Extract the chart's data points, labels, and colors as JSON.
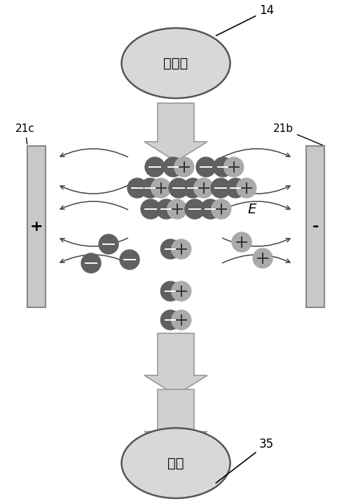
{
  "bg_color": "#ffffff",
  "fig_width": 5.02,
  "fig_height": 7.14,
  "dpi": 100,
  "ion_source_label": "离子源",
  "ion_source_label_num": "14",
  "object_label": "物体",
  "object_label_num": "35",
  "plate_left_label": "21c",
  "plate_right_label": "21b",
  "plate_left_sign": "+",
  "plate_right_sign": "-",
  "field_label": "E",
  "ellipse_fc": "#d8d8d8",
  "ellipse_ec": "#555555",
  "plate_fc": "#c8c8c8",
  "plate_ec": "#888888",
  "arrow_fc": "#d0d0d0",
  "arrow_ec": "#999999",
  "neg_circle_fc": "#606060",
  "pos_circle_fc": "#aaaaaa",
  "curve_color": "#444444"
}
